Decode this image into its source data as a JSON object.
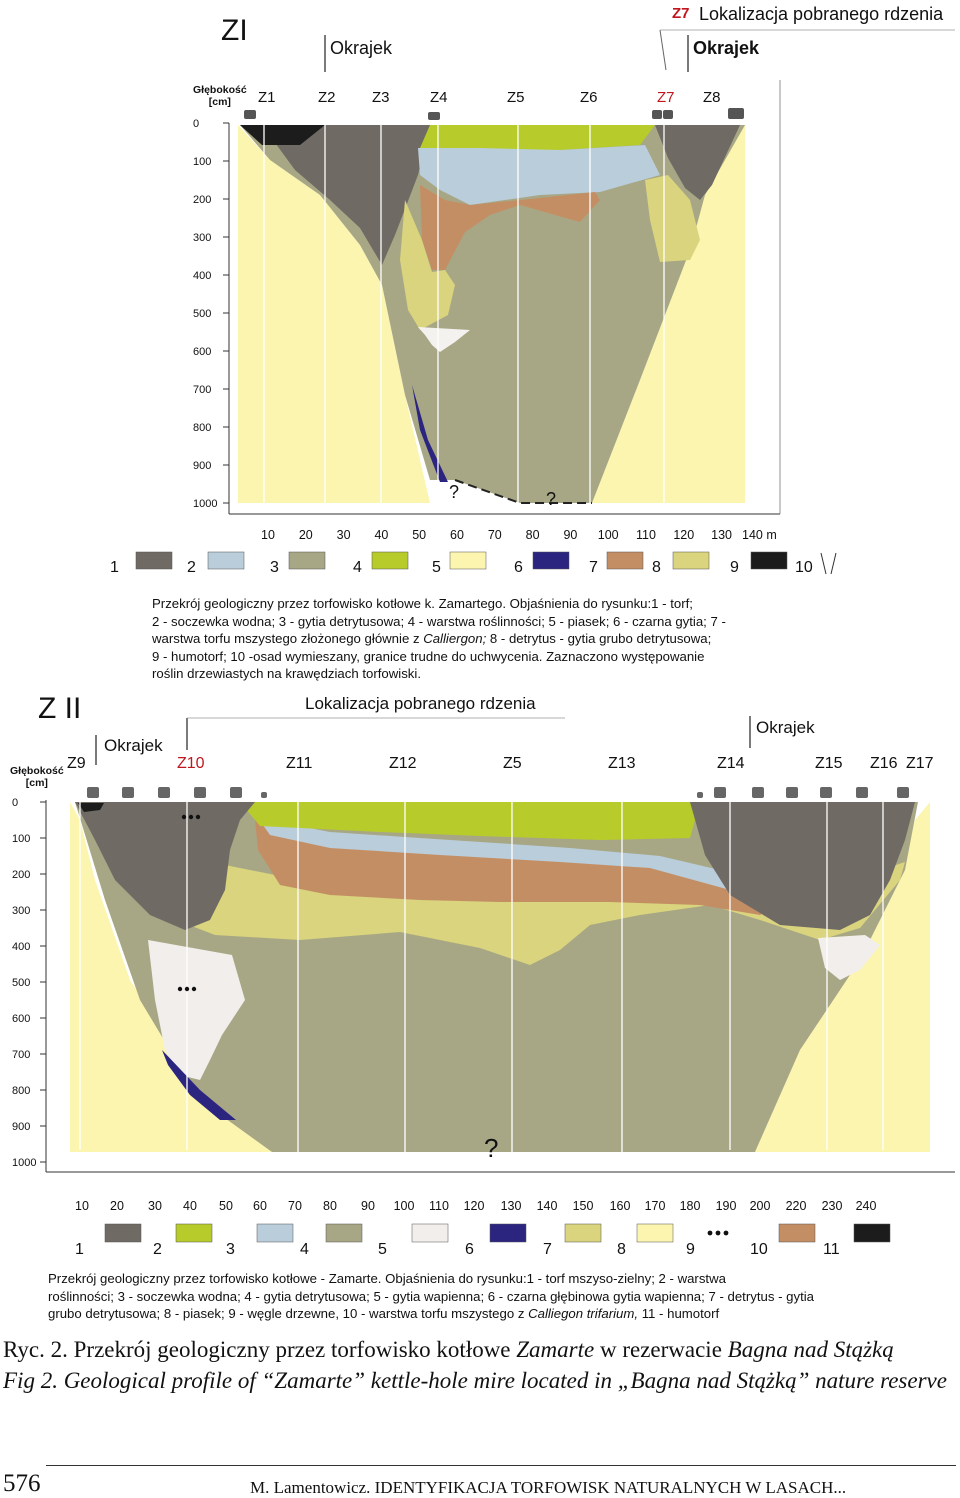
{
  "figure1": {
    "title": "ZI",
    "core_label": "Z7",
    "core_location_label": "Lokalizacja pobranego rdzenia",
    "edge_label": "Okrajek",
    "depth_axis_title": [
      "Głębokość",
      "[cm]"
    ],
    "depth_ticks": [
      "0",
      "100",
      "200",
      "300",
      "400",
      "500",
      "600",
      "700",
      "800",
      "900",
      "1000"
    ],
    "distance_ticks": [
      "10",
      "20",
      "30",
      "40",
      "50",
      "60",
      "70",
      "80",
      "90",
      "100",
      "110",
      "120",
      "130",
      "140 m"
    ],
    "cores": [
      "Z1",
      "Z2",
      "Z3",
      "Z4",
      "Z5",
      "Z6",
      "Z7",
      "Z8"
    ],
    "unknown_marks": [
      "?",
      "?"
    ],
    "legend_numbers": [
      "1",
      "2",
      "3",
      "4",
      "5",
      "6",
      "7",
      "8",
      "9",
      "10"
    ],
    "legend_colors": [
      "#6f6a64",
      "#b9cdda",
      "#a8a785",
      "#b7cc2b",
      "#fbf5b0",
      "#2b2580",
      "#c48e64",
      "#d9d47d",
      "#1c1c1c",
      "none"
    ],
    "caption_lines": [
      "Przekrój geologiczny przez torfowisko kotłowe k. Zamartego. Objaśnienia do rysunku:1 - torf;",
      "2 - soczewka wodna; 3 - gytia detrytusowa; 4 - warstwa roślinności; 5 - piasek; 6 - czarna gytia; 7 -",
      "warstwa torfu mszystego złożonego głównie z ",
      "Calliergon;",
      " 8 - detrytus - gytia grubo detrytusowa;",
      "9 - humotorf; 10 -osad wymieszany, granice trudne do uchwycenia. Zaznaczono występowanie",
      "roślin drzewiastych na krawędziach  torfowiski."
    ]
  },
  "figure2": {
    "title": "Z II",
    "core_location_label": "Lokalizacja pobranego rdzenia",
    "edge_label": "Okrajek",
    "depth_axis_title": [
      "Głębokość",
      "[cm]"
    ],
    "depth_ticks": [
      "0",
      "100",
      "200",
      "300",
      "400",
      "500",
      "600",
      "700",
      "800",
      "900",
      "1000"
    ],
    "distance_ticks": [
      "10",
      "20",
      "30",
      "40",
      "50",
      "60",
      "70",
      "80",
      "90",
      "100",
      "110",
      "120",
      "130",
      "140",
      "150",
      "160",
      "170",
      "180",
      "190",
      "200",
      "220",
      "230",
      "240"
    ],
    "cores": [
      "Z9",
      "Z10",
      "Z11",
      "Z12",
      "Z5",
      "Z13",
      "Z14",
      "Z15",
      "Z16",
      "Z17"
    ],
    "highlight_core": "Z10",
    "unknown_mark": "?",
    "legend_numbers": [
      "1",
      "2",
      "3",
      "4",
      "5",
      "6",
      "7",
      "8",
      "9",
      "10",
      "11"
    ],
    "legend_colors": [
      "#6f6a64",
      "#b7cc2b",
      "#b9cdda",
      "#a8a785",
      "#f1eeec",
      "#2b2580",
      "#d9d47d",
      "#fbf5b0",
      "charcoal",
      "#c48e64",
      "#1c1c1c"
    ],
    "caption_lines": [
      "Przekrój geologiczny przez torfowisko kotłowe - Zamarte. Objaśnienia do rysunku:1 - torf mszyso-zielny; 2 - warstwa",
      "roślinności; 3 - soczewka wodna; 4 - gytia detrytusowa; 5 - gytia wapienna; 6 - czarna głębinowa gytia wapienna; 7 - detrytus - gytia",
      "grubo detrytusowa; 8 - piasek; 9 - węgle drzewne, 10 - warstwa torfu mszystego z ",
      "Calliegon trifarium,",
      " 11 - humotorf"
    ]
  },
  "caption": {
    "ryc_label": "Ryc. 2.",
    "ryc_text": " Przekrój geologiczny przez torfowisko kotłowe ",
    "ryc_italic1": "Zamarte",
    "ryc_text2": " w rezerwacie ",
    "ryc_italic2": "Bagna nad Stążką",
    "fig_text": "Fig 2. Geological profile of “Zamarte” kettle-hole mire located in „Bagna nad Stążką” nature reserve"
  },
  "footer": {
    "page_number": "576",
    "running_head": "M. Lamentowicz.  IDENTYFIKACJA TORFOWISK NATURALNYCH W LASACH..."
  }
}
